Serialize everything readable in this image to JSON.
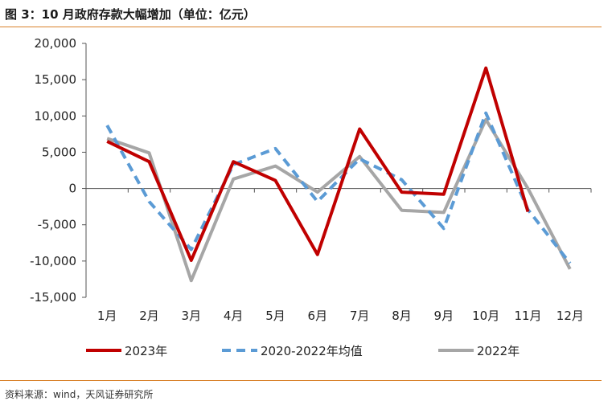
{
  "title": "图 3：10 月政府存款大幅增加（单位：亿元）",
  "source": "资料来源：wind，天风证券研究所",
  "chart_data": {
    "type": "line",
    "title": "图 3：10 月政府存款大幅增加（单位：亿元）",
    "categories": [
      "1月",
      "2月",
      "3月",
      "4月",
      "5月",
      "6月",
      "7月",
      "8月",
      "9月",
      "10月",
      "11月",
      "12月"
    ],
    "ylim": [
      -15000,
      20000
    ],
    "yticks": [
      -15000,
      -10000,
      -5000,
      0,
      5000,
      10000,
      15000,
      20000
    ],
    "ytick_labels": [
      "-15,000",
      "-10,000",
      "-5,000",
      "0",
      "5,000",
      "10,000",
      "15,000",
      "20,000"
    ],
    "grid": false,
    "legend_position": "bottom",
    "series": [
      {
        "name": "2023年",
        "color": "#c00000",
        "style": "solid",
        "values": [
          6500,
          3700,
          -9900,
          3700,
          1100,
          -9100,
          8200,
          -500,
          -800,
          16600,
          -3200,
          null
        ]
      },
      {
        "name": "2020-2022年均值",
        "color": "#5b9bd5",
        "style": "dashed",
        "values": [
          8700,
          -1800,
          -8400,
          3300,
          5500,
          -1800,
          4100,
          1200,
          -5500,
          10400,
          -2900,
          -10300
        ]
      },
      {
        "name": "2022年",
        "color": "#a6a6a6",
        "style": "solid",
        "values": [
          6900,
          4900,
          -12700,
          1300,
          3100,
          -500,
          4400,
          -3000,
          -3300,
          9500,
          0,
          -11100
        ]
      }
    ]
  }
}
